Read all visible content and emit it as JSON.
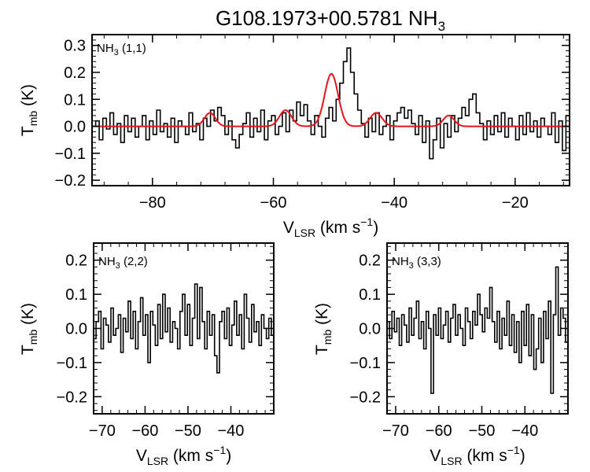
{
  "figure": {
    "title": "G108.1973+00.5781 NH",
    "title_sub": "3"
  },
  "chart_data": [
    {
      "type": "line",
      "panel": "top",
      "label": "NH",
      "label_sub": "3",
      "label_suffix": " (1,1)",
      "xlabel": "V",
      "xlabel_sub": "LSR",
      "xlabel_unit": " (km s",
      "xlabel_exp": "−1",
      "xlabel_close": ")",
      "ylabel": "T",
      "ylabel_sub": "mb",
      "ylabel_unit": " (K)",
      "xlim": [
        -90,
        -11
      ],
      "ylim": [
        -0.22,
        0.34
      ],
      "xticks": [
        -80,
        -60,
        -40,
        -20
      ],
      "xtick_labels": [
        "−80",
        "−60",
        "−40",
        "−20"
      ],
      "yticks": [
        -0.2,
        -0.1,
        0.0,
        0.1,
        0.2,
        0.3
      ],
      "ytick_labels": [
        "−0.2",
        "−0.1",
        "0.0",
        "0.1",
        "0.2",
        "0.3"
      ],
      "grid": false,
      "spectrum_color": "#000000",
      "fit_color": "#e8141b",
      "fit_components": [
        {
          "center": -70.5,
          "amplitude": 0.05,
          "sigma": 0.9
        },
        {
          "center": -58.0,
          "amplitude": 0.06,
          "sigma": 1.0
        },
        {
          "center": -50.4,
          "amplitude": 0.195,
          "sigma": 1.1
        },
        {
          "center": -43.0,
          "amplitude": 0.05,
          "sigma": 1.0
        },
        {
          "center": -31.0,
          "amplitude": 0.04,
          "sigma": 0.9
        }
      ],
      "spectrum": [
        0.0,
        0.02,
        -0.05,
        0.03,
        -0.01,
        0.05,
        -0.03,
        0.01,
        -0.06,
        0.04,
        -0.02,
        0.03,
        -0.04,
        0.0,
        0.04,
        -0.05,
        0.02,
        -0.03,
        0.06,
        -0.02,
        0.01,
        -0.04,
        0.03,
        -0.06,
        0.02,
        0.0,
        -0.03,
        0.05,
        -0.02,
        0.01,
        -0.05,
        0.03,
        0.0,
        0.06,
        0.02,
        0.07,
        0.04,
        -0.03,
        0.02,
        -0.05,
        -0.08,
        -0.03,
        0.01,
        0.05,
        -0.04,
        0.03,
        -0.02,
        0.06,
        -0.05,
        0.02,
        0.04,
        -0.03,
        0.0,
        0.05,
        -0.02,
        0.06,
        0.02,
        0.09,
        0.04,
        0.08,
        0.02,
        -0.03,
        0.04,
        0.0,
        -0.04,
        0.03,
        0.07,
        0.02,
        0.1,
        0.16,
        0.24,
        0.29,
        0.2,
        0.12,
        0.06,
        0.01,
        -0.04,
        0.03,
        -0.02,
        0.05,
        -0.03,
        0.0,
        0.04,
        -0.05,
        0.02,
        0.05,
        0.07,
        0.03,
        0.06,
        0.01,
        -0.03,
        0.04,
        -0.06,
        0.02,
        -0.12,
        -0.05,
        0.03,
        -0.08,
        0.01,
        -0.04,
        0.04,
        -0.02,
        0.03,
        0.07,
        0.04,
        0.1,
        0.12,
        0.05,
        0.01,
        -0.05,
        0.02,
        -0.03,
        0.04,
        -0.02,
        0.05,
        -0.04,
        0.03,
        0.0,
        -0.05,
        0.04,
        -0.03,
        0.05,
        -0.02,
        0.02,
        -0.04,
        0.03,
        0.0,
        -0.03,
        0.05,
        -0.06,
        0.02,
        -0.09,
        0.04
      ]
    },
    {
      "type": "line",
      "panel": "bottom-left",
      "label": "NH",
      "label_sub": "3",
      "label_suffix": " (2,2)",
      "xlabel": "V",
      "xlabel_sub": "LSR",
      "xlabel_unit": " (km s",
      "xlabel_exp": "−1",
      "xlabel_close": ")",
      "ylabel": "T",
      "ylabel_sub": "mb",
      "ylabel_unit": " (K)",
      "xlim": [
        -72,
        -30
      ],
      "ylim": [
        -0.25,
        0.25
      ],
      "xticks": [
        -70,
        -60,
        -50,
        -40
      ],
      "xtick_labels": [
        "−70",
        "−60",
        "−50",
        "−40"
      ],
      "yticks": [
        -0.2,
        -0.1,
        0.0,
        0.1,
        0.2
      ],
      "ytick_labels": [
        "−0.2",
        "−0.1",
        "0.0",
        "0.1",
        "0.2"
      ],
      "grid": false,
      "spectrum_color": "#000000",
      "spectrum": [
        -0.03,
        0.02,
        0.05,
        -0.06,
        0.03,
        0.01,
        -0.04,
        0.06,
        -0.02,
        0.0,
        0.04,
        -0.07,
        0.03,
        -0.01,
        0.08,
        -0.03,
        0.05,
        -0.06,
        0.02,
        0.09,
        -0.02,
        0.04,
        -0.1,
        0.05,
        0.01,
        -0.05,
        0.07,
        -0.03,
        0.1,
        -0.01,
        0.06,
        -0.04,
        0.02,
        0.0,
        -0.06,
        0.05,
        0.1,
        -0.02,
        0.07,
        -0.05,
        0.03,
        0.13,
        -0.03,
        0.12,
        0.02,
        -0.06,
        0.05,
        -0.02,
        0.04,
        -0.08,
        -0.13,
        0.02,
        0.05,
        -0.03,
        0.06,
        -0.05,
        0.01,
        0.08,
        -0.02,
        0.04,
        -0.06,
        0.1,
        0.03,
        -0.04,
        0.07,
        -0.01,
        0.02,
        -0.05,
        0.04,
        0.0,
        -0.03,
        0.03,
        -0.02
      ]
    },
    {
      "type": "line",
      "panel": "bottom-right",
      "label": "NH",
      "label_sub": "3",
      "label_suffix": " (3,3)",
      "xlabel": "V",
      "xlabel_sub": "LSR",
      "xlabel_unit": " (km s",
      "xlabel_exp": "−1",
      "xlabel_close": ")",
      "ylabel": "T",
      "ylabel_sub": "mb",
      "ylabel_unit": " (K)",
      "xlim": [
        -72,
        -30
      ],
      "ylim": [
        -0.25,
        0.25
      ],
      "xticks": [
        -70,
        -60,
        -50,
        -40
      ],
      "xtick_labels": [
        "−70",
        "−60",
        "−50",
        "−40"
      ],
      "yticks": [
        -0.2,
        -0.1,
        0.0,
        0.1,
        0.2
      ],
      "ytick_labels": [
        "−0.2",
        "−0.1",
        "0.0",
        "0.1",
        "0.2"
      ],
      "grid": false,
      "spectrum_color": "#000000",
      "spectrum": [
        0.02,
        -0.03,
        0.05,
        -0.01,
        0.03,
        -0.05,
        0.04,
        0.01,
        -0.04,
        0.06,
        -0.02,
        0.03,
        0.08,
        -0.03,
        0.02,
        -0.06,
        0.05,
        0.0,
        -0.19,
        0.04,
        -0.02,
        0.06,
        -0.03,
        0.01,
        0.05,
        -0.04,
        0.03,
        0.07,
        -0.02,
        0.04,
        0.0,
        -0.05,
        0.06,
        0.02,
        -0.03,
        0.05,
        0.01,
        0.1,
        0.04,
        -0.01,
        0.06,
        0.03,
        0.12,
        0.02,
        -0.04,
        0.05,
        -0.06,
        0.03,
        -0.02,
        0.08,
        -0.05,
        0.04,
        -0.07,
        0.02,
        -0.1,
        0.05,
        -0.05,
        0.07,
        -0.08,
        0.04,
        -0.12,
        -0.06,
        0.03,
        -0.1,
        0.05,
        -0.03,
        0.08,
        -0.19,
        0.04,
        0.18,
        -0.02,
        0.06,
        0.03,
        -0.04
      ]
    }
  ]
}
